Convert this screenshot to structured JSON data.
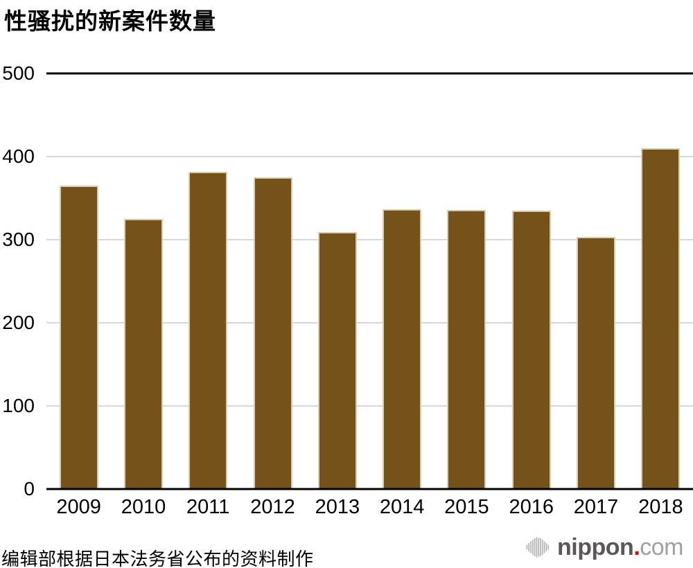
{
  "title": "性骚扰的新案件数量",
  "source": "编辑部根据日本法务省公布的资料制作",
  "logo": {
    "icon": "nippon-waveform-icon",
    "bold": "nippon",
    "dot": ".",
    "rest": "com"
  },
  "colors": {
    "bar": "#76521b",
    "bar_border": "#d9ccb4",
    "grid": "#d8d8d8",
    "axis": "#000000",
    "text": "#000000",
    "logo_dark": "#595757",
    "logo_light": "#9fa0a0",
    "logo_dot": "#e60012",
    "logo_icon": "#b3b3b3"
  },
  "chart_data": {
    "type": "bar",
    "title": "性骚扰的新案件数量",
    "categories": [
      "2009",
      "2010",
      "2011",
      "2012",
      "2013",
      "2014",
      "2015",
      "2016",
      "2017",
      "2018"
    ],
    "values": [
      365,
      325,
      382,
      375,
      309,
      337,
      336,
      335,
      303,
      410
    ],
    "xlabel": "",
    "ylabel": "",
    "ylim": [
      0,
      500
    ],
    "y_ticks": [
      0,
      100,
      200,
      300,
      400,
      500
    ],
    "grid": "horizontal-light",
    "legend": "none",
    "bar_color": "#76521b",
    "source_note": "编辑部根据日本法务省公布的资料制作"
  }
}
